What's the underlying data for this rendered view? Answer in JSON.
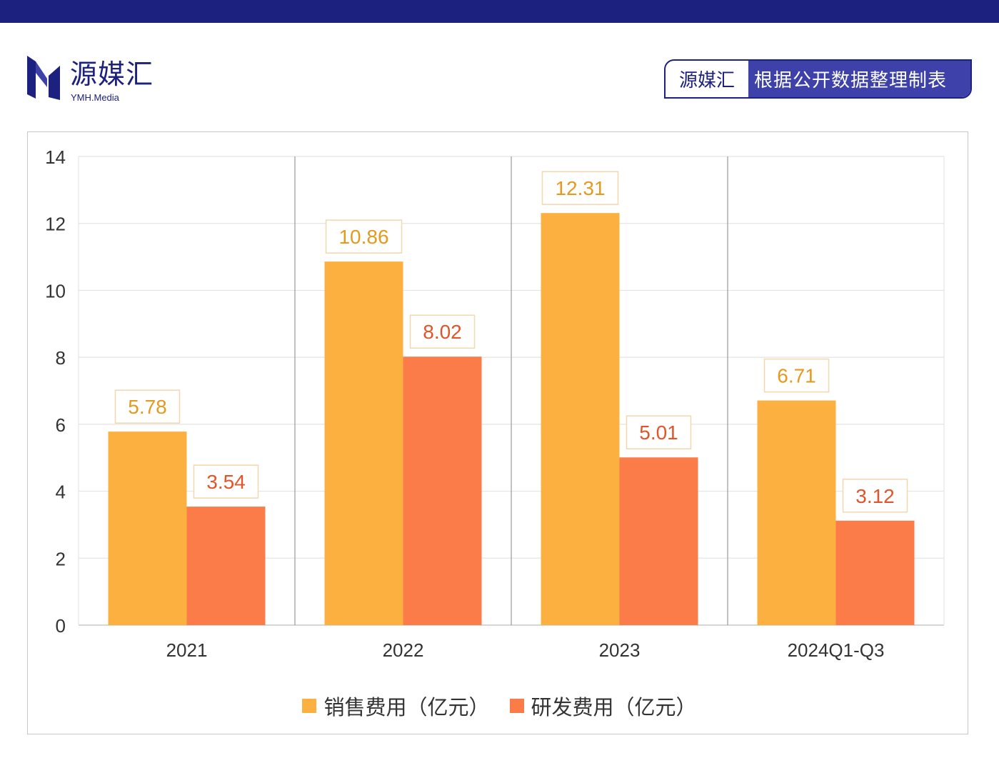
{
  "header": {
    "logo_cn": "源媒汇",
    "logo_en": "YMH.Media",
    "source_brand": "源媒汇",
    "source_text": "根据公开数据整理制表"
  },
  "colors": {
    "brand_navy": "#1c2180",
    "badge_fill": "#3d41a9",
    "sales": "#fbb040",
    "rd": "#fb7c48",
    "sales_label_text": "#e39a1f",
    "rd_label_text": "#e2552a"
  },
  "chart_data": {
    "type": "bar",
    "categories": [
      "2021",
      "2022",
      "2023",
      "2024Q1-Q3"
    ],
    "series": [
      {
        "name": "销售费用（亿元）",
        "values": [
          5.78,
          10.86,
          12.31,
          6.71
        ]
      },
      {
        "name": "研发费用（亿元）",
        "values": [
          3.54,
          8.02,
          5.01,
          3.12
        ]
      }
    ],
    "data_labels": [
      [
        "5.78",
        "10.86",
        "12.31",
        "6.71"
      ],
      [
        "3.54",
        "8.02",
        "5.01",
        "3.12"
      ]
    ],
    "yticks": [
      "0",
      "2",
      "4",
      "6",
      "8",
      "10",
      "12",
      "14"
    ],
    "ylim": [
      0,
      14
    ],
    "grid": true,
    "legend_position": "bottom"
  }
}
